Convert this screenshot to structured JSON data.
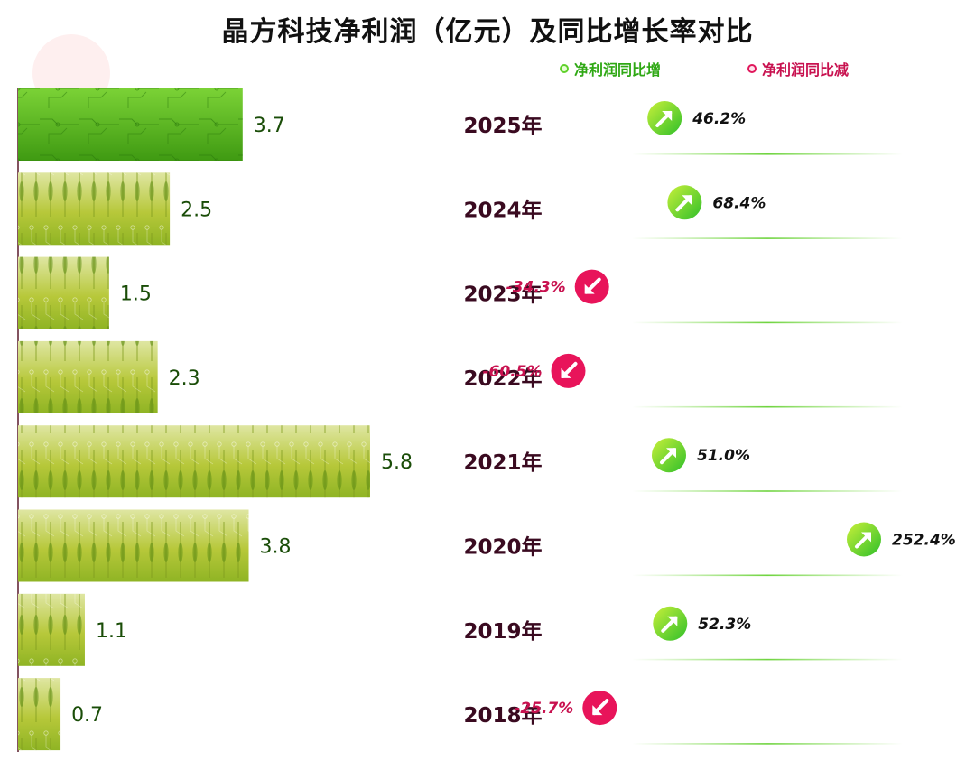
{
  "title": "晶方科技净利润（亿元）及同比增长率对比",
  "legend": {
    "up_label": "净利润同比增",
    "down_label": "净利润同比减"
  },
  "colors": {
    "up": "#5fd12a",
    "down": "#e8145a",
    "bar_dark": "#49a51a",
    "bar_light": "#c2cf3c",
    "value_label": "#1a4d08",
    "year_label": "#3a0a20"
  },
  "chart_data": {
    "type": "bar",
    "orientation": "horizontal",
    "title": "晶方科技净利润（亿元）及同比增长率对比",
    "categories": [
      "2025年",
      "2024年",
      "2023年",
      "2022年",
      "2021年",
      "2020年",
      "2019年",
      "2018年"
    ],
    "series": [
      {
        "name": "净利润（亿元）",
        "values": [
          3.7,
          2.5,
          1.5,
          2.3,
          5.8,
          3.8,
          1.1,
          0.7
        ],
        "value_labels": [
          "3.7",
          "2.5",
          "1.5",
          "2.3",
          "5.8",
          "3.8",
          "1.1",
          "0.7"
        ]
      },
      {
        "name": "同比增长率",
        "values": [
          46.2,
          68.4,
          -34.3,
          -60.5,
          51.0,
          252.4,
          52.3,
          -25.7
        ],
        "value_labels": [
          "46.2%",
          "68.4%",
          "-34.3%",
          "-60.5%",
          "51.0%",
          "252.4%",
          "52.3%",
          "-25.7%"
        ]
      }
    ],
    "xlim": [
      0,
      5.8
    ],
    "growth_range": [
      -60.5,
      252.4
    ],
    "highlight_category": "2025年"
  }
}
